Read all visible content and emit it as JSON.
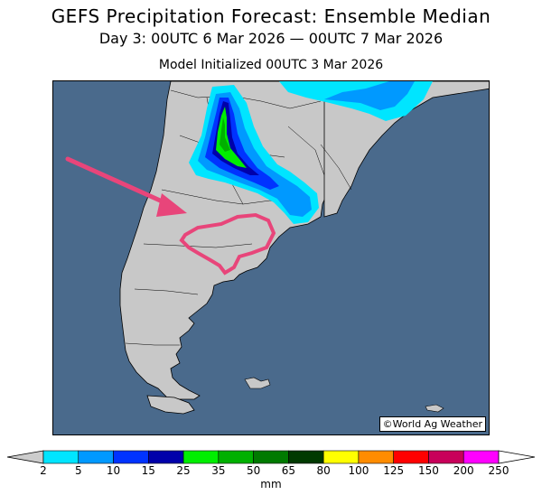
{
  "header": {
    "title": "GEFS Precipitation Forecast: Ensemble Median",
    "subtitle": "Day 3: 00UTC 6 Mar 2026 — 00UTC 7 Mar 2026",
    "initialized": "Model Initialized 00UTC 3 Mar 2026"
  },
  "map": {
    "credit": "©World Ag Weather",
    "ocean_color": "#4a6a8c",
    "land_color": "#c8c8c8",
    "annotation_color": "#e8457a"
  },
  "colorbar": {
    "unit": "mm",
    "ticks": [
      "2",
      "5",
      "10",
      "15",
      "25",
      "35",
      "50",
      "65",
      "80",
      "100",
      "125",
      "150",
      "200",
      "250"
    ],
    "colors": [
      "#00e5ff",
      "#0099ff",
      "#0033ff",
      "#0000aa",
      "#00ee00",
      "#00b000",
      "#007a00",
      "#003a00",
      "#ffff00",
      "#ff8c00",
      "#ff0000",
      "#c8005a",
      "#ff00ff",
      "#9955cc"
    ],
    "under_color": "#cccccc",
    "over_color": "#ffffff"
  }
}
